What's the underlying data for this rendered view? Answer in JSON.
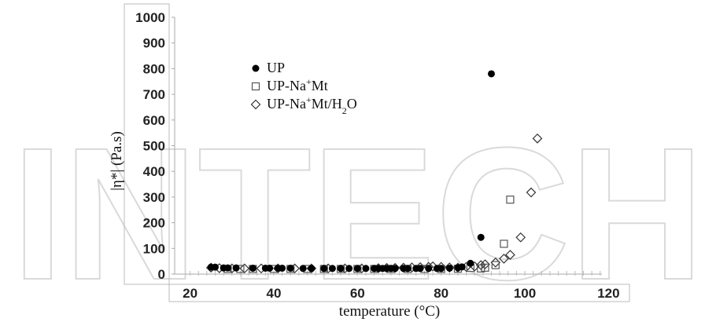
{
  "watermark": {
    "text": "INTECH"
  },
  "chart_data": {
    "type": "scatter",
    "xlabel": "temperature (°C)",
    "ylabel": "|η*| (Pa.s)",
    "xlim": [
      15,
      125
    ],
    "ylim": [
      0,
      1000
    ],
    "x_ticks": [
      "20",
      "40",
      "60",
      "80",
      "100",
      "120"
    ],
    "y_ticks": [
      "0",
      "100",
      "200",
      "300",
      "400",
      "500",
      "600",
      "700",
      "800",
      "900",
      "1000"
    ],
    "legend_position": "top-left",
    "grid": false,
    "series": [
      {
        "name": "UP",
        "marker": "filled-circle",
        "color": "#000000",
        "legend": {
          "main": "UP"
        },
        "points": [
          [
            25,
            27
          ],
          [
            26,
            27
          ],
          [
            28,
            24
          ],
          [
            29,
            24
          ],
          [
            31,
            24
          ],
          [
            35,
            23
          ],
          [
            38,
            23
          ],
          [
            39,
            23
          ],
          [
            41,
            23
          ],
          [
            42,
            23
          ],
          [
            44,
            23
          ],
          [
            47,
            22
          ],
          [
            49,
            22
          ],
          [
            52,
            22
          ],
          [
            54,
            22
          ],
          [
            56,
            22
          ],
          [
            58,
            22
          ],
          [
            60,
            22
          ],
          [
            62,
            22
          ],
          [
            64,
            22
          ],
          [
            65,
            22
          ],
          [
            66,
            22
          ],
          [
            67,
            22
          ],
          [
            68,
            22
          ],
          [
            69,
            22
          ],
          [
            71,
            22
          ],
          [
            72,
            22
          ],
          [
            74,
            22
          ],
          [
            75,
            22
          ],
          [
            77,
            22
          ],
          [
            79,
            22
          ],
          [
            80,
            22
          ],
          [
            82,
            23
          ],
          [
            84,
            25
          ],
          [
            85,
            28
          ],
          [
            87,
            42
          ],
          [
            89.5,
            143
          ],
          [
            92,
            780
          ]
        ]
      },
      {
        "name": "UP-Na+Mt",
        "marker": "open-square",
        "color": "#555555",
        "legend": {
          "main": "UP-Na",
          "sup": "+",
          "rest": "Mt"
        },
        "points": [
          [
            29,
            20
          ],
          [
            32,
            20
          ],
          [
            35,
            20
          ],
          [
            40,
            20
          ],
          [
            44,
            20
          ],
          [
            48,
            20
          ],
          [
            52,
            20
          ],
          [
            56,
            20
          ],
          [
            60,
            20
          ],
          [
            64,
            20
          ],
          [
            68,
            20
          ],
          [
            72,
            20
          ],
          [
            76,
            20
          ],
          [
            80,
            20
          ],
          [
            84,
            21
          ],
          [
            87,
            24
          ],
          [
            89.5,
            22
          ],
          [
            90.5,
            25
          ],
          [
            93,
            35
          ],
          [
            95,
            118
          ],
          [
            96.5,
            290
          ]
        ]
      },
      {
        "name": "UP-Na+Mt/H2O",
        "marker": "open-diamond",
        "color": "#333333",
        "legend": {
          "main": "UP-Na",
          "sup": "+",
          "mid": "Mt/H",
          "sub": "2",
          "rest": "O"
        },
        "points": [
          [
            25,
            25
          ],
          [
            27,
            23
          ],
          [
            30,
            22
          ],
          [
            33,
            22
          ],
          [
            37,
            22
          ],
          [
            41,
            22
          ],
          [
            45,
            22
          ],
          [
            49,
            22
          ],
          [
            53,
            22
          ],
          [
            57,
            22
          ],
          [
            61,
            22
          ],
          [
            65,
            23
          ],
          [
            67,
            24
          ],
          [
            69,
            24
          ],
          [
            71,
            25
          ],
          [
            73,
            26
          ],
          [
            75,
            27
          ],
          [
            77,
            28
          ],
          [
            78,
            30
          ],
          [
            80,
            28
          ],
          [
            82,
            26
          ],
          [
            84,
            25
          ],
          [
            86,
            28
          ],
          [
            88,
            30
          ],
          [
            89.5,
            35
          ],
          [
            90.5,
            38
          ],
          [
            93,
            45
          ],
          [
            95,
            60
          ],
          [
            96.5,
            75
          ],
          [
            99,
            143
          ],
          [
            101.5,
            318
          ],
          [
            103,
            528
          ]
        ]
      }
    ]
  }
}
